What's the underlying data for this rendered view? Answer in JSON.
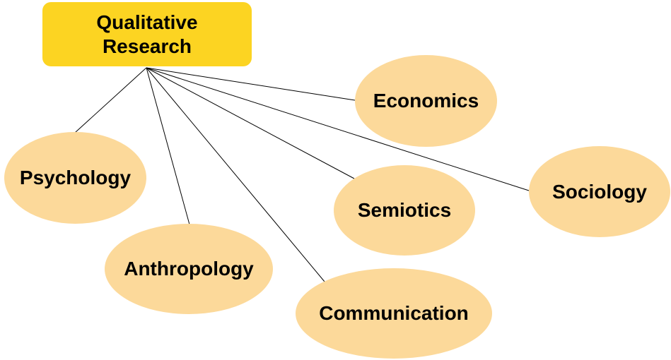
{
  "diagram": {
    "root": {
      "label": "Qualitative Research"
    },
    "nodes": [
      {
        "id": "psychology",
        "label": "Psychology"
      },
      {
        "id": "anthropology",
        "label": "Anthropology"
      },
      {
        "id": "communication",
        "label": "Communication"
      },
      {
        "id": "semiotics",
        "label": "Semiotics"
      },
      {
        "id": "economics",
        "label": "Economics"
      },
      {
        "id": "sociology",
        "label": "Sociology"
      }
    ],
    "colors": {
      "root_fill": "#fcd422",
      "node_fill": "#fcd99a",
      "connector": "#000000",
      "text": "#000000"
    }
  }
}
